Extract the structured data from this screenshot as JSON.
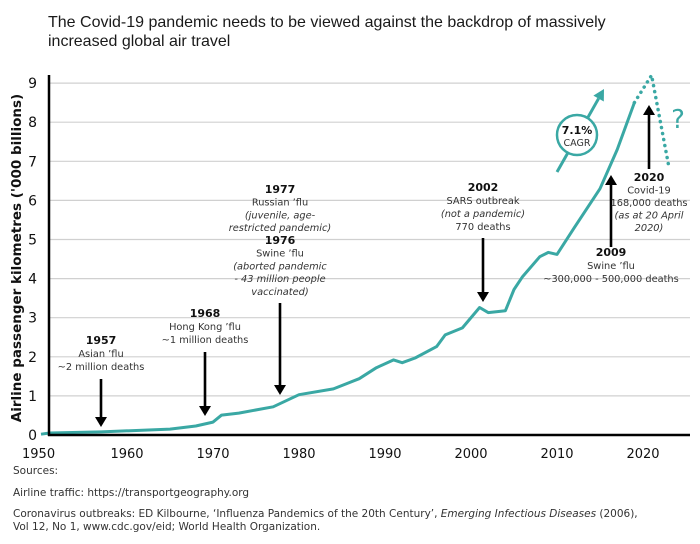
{
  "title": "The Covid-19 pandemic needs to be viewed against the backdrop of massively increased global air travel",
  "colors": {
    "line": "#3aa8a4",
    "axis": "#000000",
    "grid": "#d0d0d0",
    "text": "#222222"
  },
  "chart_data": {
    "type": "line",
    "title": "The Covid-19 pandemic needs to be viewed against the backdrop of massively increased global air travel",
    "xlabel": "",
    "ylabel": "Airline passenger kilometres ('000 billions)",
    "xlim": [
      1950,
      2024
    ],
    "ylim": [
      0,
      9
    ],
    "xticks": [
      1950,
      1960,
      1970,
      1980,
      1990,
      2000,
      2010,
      2020
    ],
    "xtick_labels": [
      "1950",
      "1960",
      "1970",
      "1980",
      "1990",
      "2000",
      "2010",
      "2020"
    ],
    "yticks": [
      0,
      1,
      2,
      3,
      4,
      5,
      6,
      7,
      8,
      9
    ],
    "ytick_labels": [
      "0",
      "1",
      "2",
      "3",
      "4",
      "5",
      "6",
      "7",
      "8",
      "9"
    ],
    "grid": true,
    "series": [
      {
        "name": "Airline passenger kilometres",
        "style": "solid",
        "x": [
          1950,
          1951,
          1957,
          1965,
          1968,
          1970,
          1971,
          1973,
          1977,
          1980,
          1984,
          1987,
          1989,
          1991,
          1992,
          1993.5,
          1996,
          1997,
          1999,
          2001,
          2002,
          2004,
          2005,
          2006,
          2008,
          2009,
          2010,
          2012,
          2015,
          2017,
          2019
        ],
        "y": [
          0.02,
          0.05,
          0.08,
          0.15,
          0.23,
          0.33,
          0.51,
          0.56,
          0.72,
          1.03,
          1.18,
          1.44,
          1.72,
          1.92,
          1.85,
          1.97,
          2.26,
          2.56,
          2.74,
          3.26,
          3.13,
          3.18,
          3.72,
          4.05,
          4.56,
          4.67,
          4.62,
          5.3,
          6.3,
          7.3,
          8.5
        ]
      },
      {
        "name": "Projection",
        "style": "dotted",
        "x": [
          2019,
          2021,
          2023
        ],
        "y": [
          8.5,
          9.2,
          6.87
        ]
      }
    ],
    "annotations": [
      {
        "year": "1957",
        "lines": [
          "Asian ’flu",
          "~2 million deaths"
        ],
        "italic": [
          false,
          false
        ],
        "arrow": "down",
        "arrow_x": 1957
      },
      {
        "year": "1968",
        "lines": [
          "Hong Kong ’flu",
          "~1 million deaths"
        ],
        "italic": [
          false,
          false
        ],
        "arrow": "down",
        "arrow_x": 1968
      },
      {
        "year": "1977",
        "lines": [
          "Russian ’flu",
          "(juvenile, age-",
          "restricted pandemic)"
        ],
        "italic": [
          false,
          true,
          true
        ],
        "arrow": "none",
        "arrow_x": 1977
      },
      {
        "year": "1976",
        "lines": [
          "Swine ’flu",
          "(aborted pandemic",
          "- 43 million people",
          "vaccinated)"
        ],
        "italic": [
          false,
          true,
          true,
          true
        ],
        "arrow": "down",
        "arrow_x": 1976
      },
      {
        "year": "2002",
        "lines": [
          "SARS outbreak",
          "(not a pandemic)",
          "770 deaths"
        ],
        "italic": [
          false,
          true,
          false
        ],
        "arrow": "down",
        "arrow_x": 2002
      },
      {
        "year": "2009",
        "lines": [
          "Swine ’flu",
          "~300,000 - 500,000 deaths"
        ],
        "italic": [
          false,
          false
        ],
        "arrow": "up",
        "arrow_x": 2009
      },
      {
        "year": "2020",
        "lines": [
          "Covid-19",
          "168,000 deaths",
          "(as at 20 April",
          "2020)"
        ],
        "italic": [
          false,
          false,
          true,
          true
        ],
        "arrow": "up",
        "arrow_x": 2020
      }
    ],
    "cagr_label": [
      "7.1%",
      "CAGR"
    ],
    "question_mark": "?"
  },
  "sources": {
    "heading": "Sources:",
    "airline": "Airline traffic: https://transportgeography.org",
    "coronavirus_pre": "Coronavirus outbreaks: ED Kilbourne, ‘Influenza Pandemics of the 20th Century’, ",
    "coronavirus_journal": "Emerging Infectious Diseases",
    "coronavirus_post": " (2006),",
    "coronavirus_line2": "Vol 12, No 1, www.cdc.gov/eid; World Health Organization."
  }
}
